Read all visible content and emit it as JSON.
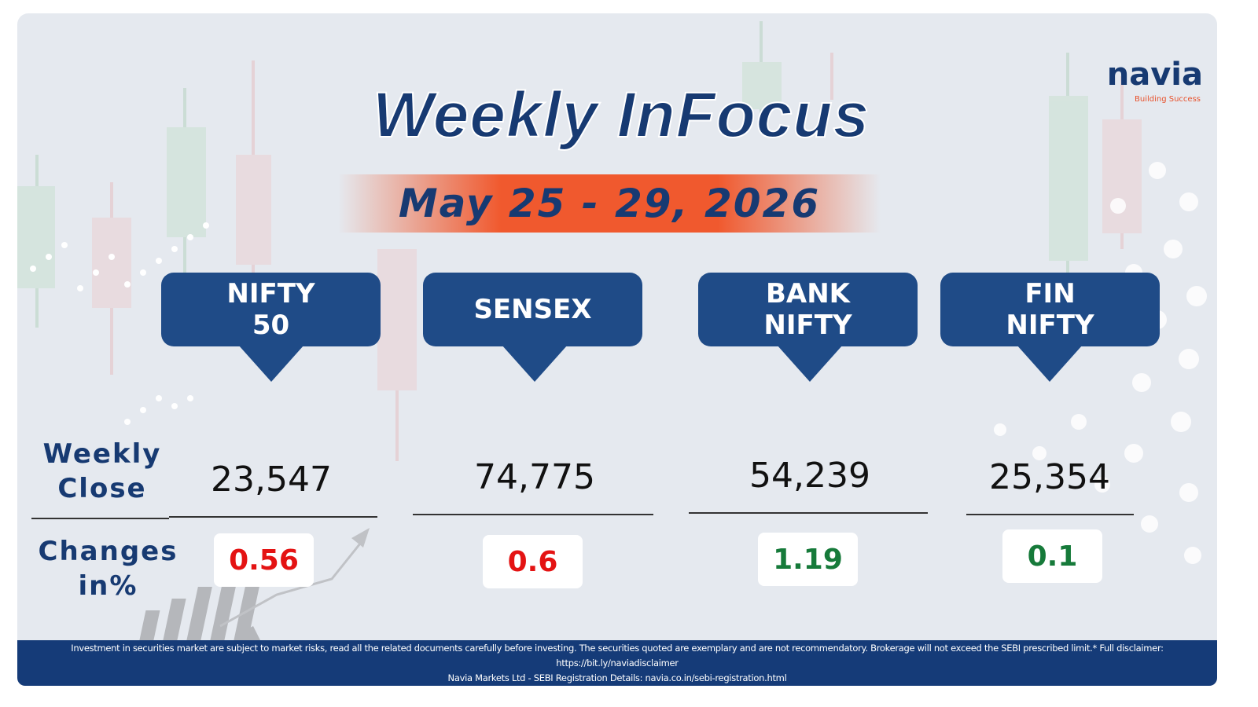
{
  "header": {
    "title": "Weekly InFocus",
    "date": "May 25 - 29, 2026"
  },
  "logo": {
    "name": "navia",
    "tagline": "Building Success"
  },
  "row_labels": {
    "close": "Weekly Close",
    "change": "Changes in%"
  },
  "indices": [
    {
      "name": "NIFTY 50",
      "close": "23,547",
      "change": "0.56",
      "change_color": "#e41313"
    },
    {
      "name": "SENSEX",
      "close": "74,775",
      "change": "0.6",
      "change_color": "#e41313"
    },
    {
      "name": "BANK NIFTY",
      "close": "54,239",
      "change": "1.19",
      "change_color": "#167a3a"
    },
    {
      "name": "FIN NIFTY",
      "close": "25,354",
      "change": "0.1",
      "change_color": "#167a3a"
    }
  ],
  "footer": {
    "lines": [
      "Investment in securities market are subject to market risks, read all the related documents carefully before investing. The securities quoted are exemplary and are not recommendatory. Brokerage will not exceed the SEBI prescribed limit.* Full disclaimer: https://bit.ly/naviadisclaimer",
      "Navia Markets Ltd - SEBI Registration Details: navia.co.in/sebi-registration.html"
    ]
  }
}
